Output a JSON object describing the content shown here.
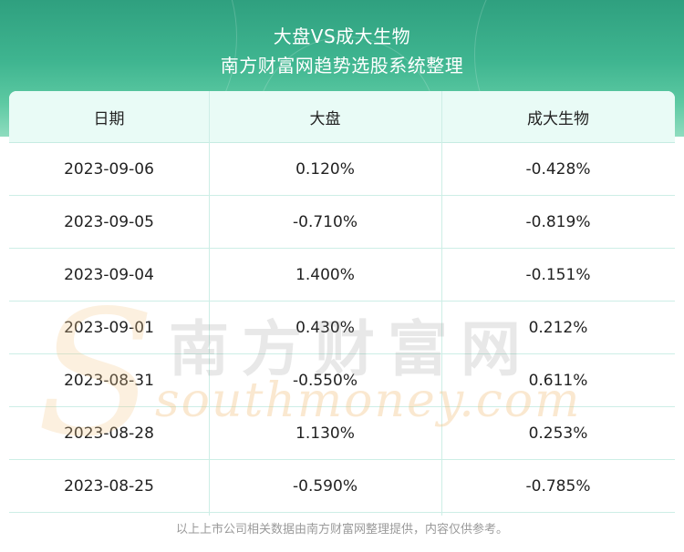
{
  "header": {
    "title": "大盘VS成大生物",
    "subtitle": "南方财富网趋势选股系统整理"
  },
  "table": {
    "columns": [
      "日期",
      "大盘",
      "成大生物"
    ],
    "rows": [
      {
        "date": "2023-09-06",
        "market": "0.120%",
        "stock": "-0.428%"
      },
      {
        "date": "2023-09-05",
        "market": "-0.710%",
        "stock": "-0.819%"
      },
      {
        "date": "2023-09-04",
        "market": "1.400%",
        "stock": "-0.151%"
      },
      {
        "date": "2023-09-01",
        "market": "0.430%",
        "stock": "0.212%"
      },
      {
        "date": "2023-08-31",
        "market": "-0.550%",
        "stock": "0.611%"
      },
      {
        "date": "2023-08-28",
        "market": "1.130%",
        "stock": "0.253%"
      },
      {
        "date": "2023-08-25",
        "market": "-0.590%",
        "stock": "-0.785%"
      }
    ]
  },
  "watermark": {
    "chinese": "南方财富网",
    "english": "southmoney.com"
  },
  "footer": {
    "note": "以上上市公司相关数据由南方财富网整理提供，内容仅供参考。"
  },
  "colors": {
    "banner": "#3fb590",
    "header_row": "#e9fbf6",
    "grid": "#cdeee6"
  }
}
